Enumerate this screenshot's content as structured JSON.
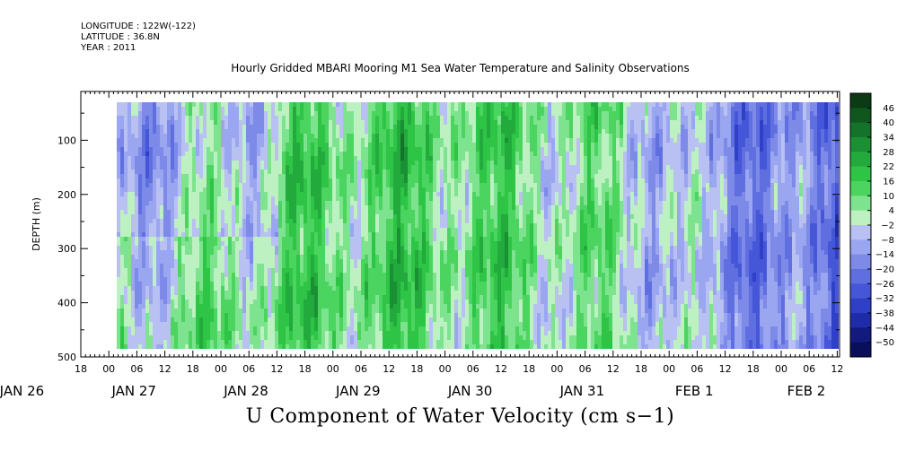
{
  "header": {
    "longitude": "LONGITUDE : 122W(-122)",
    "latitude": "LATITUDE : 36.8N",
    "year": "YEAR : 2011",
    "title": "Hourly Gridded MBARI Mooring M1 Sea Water Temperature and Salinity Observations"
  },
  "bottom_title": "U Component of Water Velocity (cm s−1)",
  "chart_data": {
    "type": "heatmap",
    "title": "Hourly Gridded MBARI Mooring M1 Sea Water Temperature and Salinity Observations",
    "variable": "U Component of Water Velocity (cm s−1)",
    "ylabel": "DEPTH (m)",
    "ylim": [
      500,
      10
    ],
    "y_inverted": true,
    "y_ticks": [
      100,
      200,
      300,
      400,
      500
    ],
    "y_tick_labels": [
      "100",
      "200",
      "300",
      "400",
      "500"
    ],
    "x_hour_labels": [
      "18",
      "00",
      "06",
      "12",
      "18",
      "00",
      "06",
      "12",
      "18",
      "00",
      "06",
      "12",
      "18",
      "00",
      "06",
      "12",
      "18",
      "00",
      "06",
      "12",
      "18",
      "00",
      "06",
      "12",
      "18",
      "00",
      "06",
      "12",
      "18",
      "00",
      "06",
      "12"
    ],
    "x_day_labels": [
      "JAN 26",
      "JAN 27",
      "JAN 28",
      "JAN 29",
      "JAN 30",
      "JAN 31",
      "FEB  1",
      "FEB  2"
    ],
    "data_time_range": [
      "JAN 26 22:00",
      "FEB 2 13:00"
    ],
    "data_depth_range": [
      20,
      485
    ],
    "colorbar": {
      "labels": [
        "46",
        "40",
        "34",
        "28",
        "22",
        "16",
        "10",
        "4",
        "−2",
        "−8",
        "−14",
        "−20",
        "−26",
        "−32",
        "−38",
        "−44",
        "−50"
      ],
      "levels": [
        46,
        40,
        34,
        28,
        22,
        16,
        10,
        4,
        -2,
        -8,
        -14,
        -20,
        -26,
        -32,
        -38,
        -44,
        -50
      ],
      "colors_top_to_bottom": [
        "#0b3a14",
        "#10561f",
        "#15722a",
        "#1a8f33",
        "#22ab3c",
        "#2ec446",
        "#4bd45f",
        "#7ee38e",
        "#bdf1c2",
        "#b9c0f2",
        "#9aa6f0",
        "#7d8ae8",
        "#5f6fe0",
        "#4656d8",
        "#2f3fc8",
        "#1f2caa",
        "#121a80",
        "#0a0f5c"
      ]
    },
    "grid": false,
    "legend_position": "right"
  }
}
